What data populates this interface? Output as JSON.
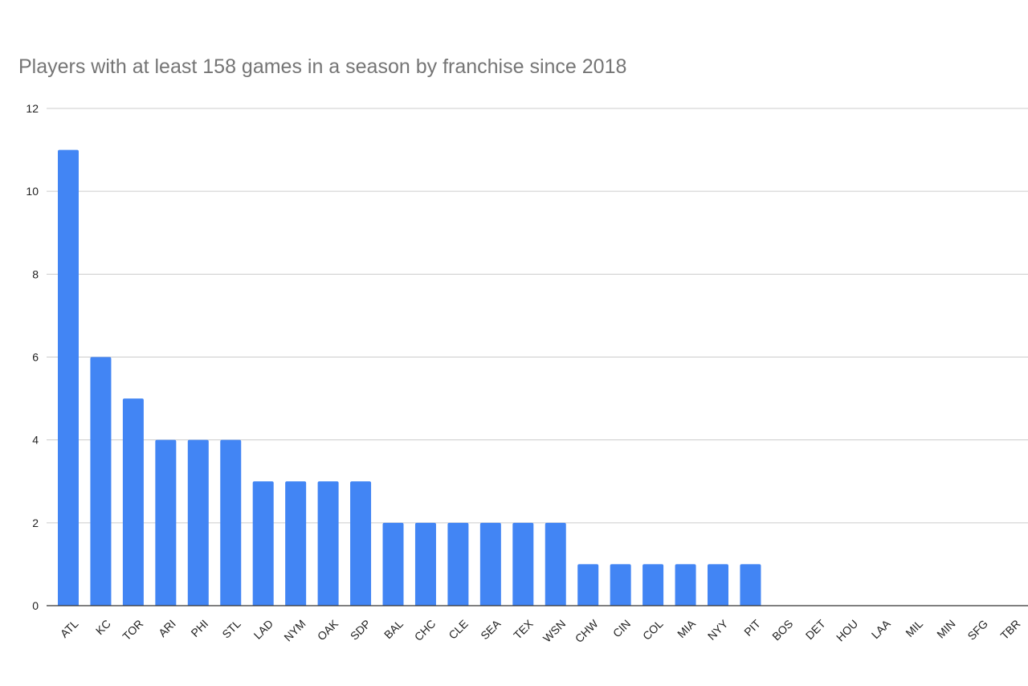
{
  "chart_data": {
    "type": "bar",
    "title": "Players with at least 158 games in a season by franchise since 2018",
    "xlabel": "",
    "ylabel": "",
    "categories": [
      "ATL",
      "KC",
      "TOR",
      "ARI",
      "PHI",
      "STL",
      "LAD",
      "NYM",
      "OAK",
      "SDP",
      "BAL",
      "CHC",
      "CLE",
      "SEA",
      "TEX",
      "WSN",
      "CHW",
      "CIN",
      "COL",
      "MIA",
      "NYY",
      "PIT",
      "BOS",
      "DET",
      "HOU",
      "LAA",
      "MIL",
      "MIN",
      "SFG",
      "TBR"
    ],
    "values": [
      11,
      6,
      5,
      4,
      4,
      4,
      3,
      3,
      3,
      3,
      2,
      2,
      2,
      2,
      2,
      2,
      1,
      1,
      1,
      1,
      1,
      1,
      0,
      0,
      0,
      0,
      0,
      0,
      0,
      0
    ],
    "ylim": [
      0,
      12
    ],
    "yticks": [
      "0",
      "2",
      "4",
      "6",
      "8",
      "10",
      "12"
    ],
    "grid": true,
    "legend": "none",
    "bar_color": "#4285f4"
  }
}
